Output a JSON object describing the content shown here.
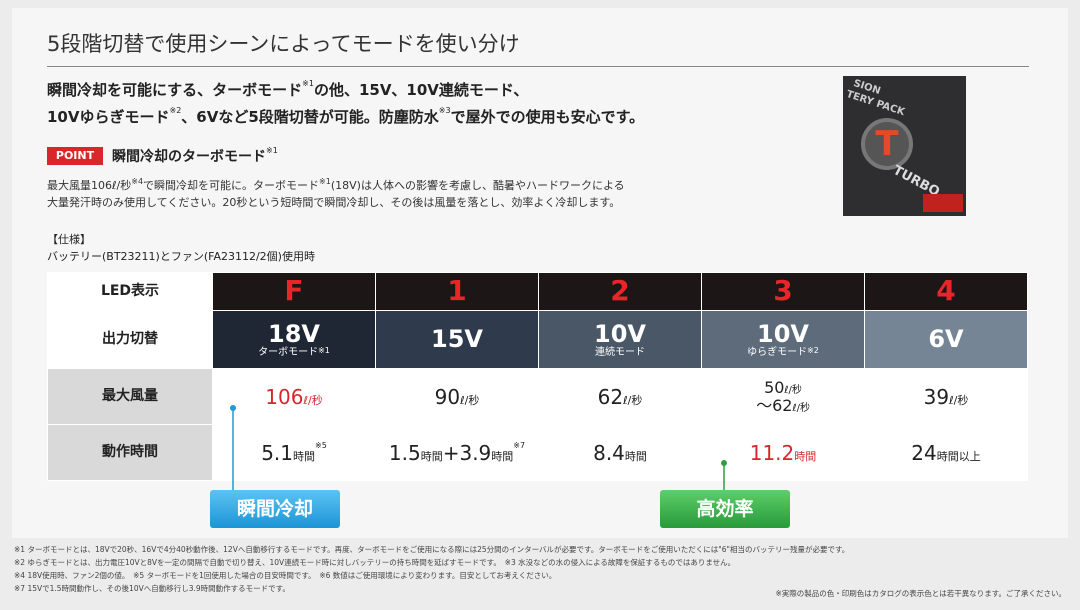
{
  "header": {
    "title": "5段階切替で使用シーンによってモードを使い分け"
  },
  "intro": {
    "lines": [
      [
        "瞬間冷却を可能にする、ターボモード",
        "※1",
        "の他、15V、10V連続モード、"
      ],
      [
        "10Vゆらぎモード",
        "※2",
        "、6Vなど5段階切替が可能。防塵防水",
        "※3",
        "で屋外での使用も安心です。"
      ]
    ]
  },
  "photo": {
    "texts": [
      "SION",
      "TERY PACK",
      "T",
      "TURBO"
    ]
  },
  "point": {
    "badge": "POINT",
    "title": [
      "瞬間冷却のターボモード",
      "※1"
    ],
    "body": [
      [
        "最大風量106ℓ/秒",
        "※4",
        "で瞬間冷却を可能に。ターボモード",
        "※1",
        "(18V)は人体への影響を考慮し、酷暑やハードワークによる"
      ],
      [
        "大量発汗時のみ使用してください。20秒という短時間で瞬間冷却し、その後は風量を落とし、効率よく冷却します。"
      ]
    ]
  },
  "spec": {
    "heading": "【仕様】",
    "condition": "バッテリー(BT23211)とファン(FA23112/2個)使用時"
  },
  "table": {
    "rows": [
      {
        "label": "LED表示",
        "cells": [
          {
            "lines": [
              [
                "F"
              ]
            ]
          },
          {
            "lines": [
              [
                "1"
              ]
            ]
          },
          {
            "lines": [
              [
                "2"
              ]
            ]
          },
          {
            "lines": [
              [
                "3"
              ]
            ]
          },
          {
            "lines": [
              [
                "4"
              ]
            ]
          }
        ]
      },
      {
        "label": "出力切替",
        "cells": [
          {
            "lines": [
              [
                "18V"
              ]
            ],
            "sub": "ターボモード",
            "note": "※1"
          },
          {
            "lines": [
              [
                "15V"
              ]
            ]
          },
          {
            "lines": [
              [
                "10V"
              ]
            ],
            "sub": "連続モード"
          },
          {
            "lines": [
              [
                "10V"
              ]
            ],
            "sub": "ゆらぎモード",
            "note": "※2"
          },
          {
            "lines": [
              [
                "6V"
              ]
            ]
          }
        ]
      },
      {
        "label": "最大風量",
        "cells": [
          {
            "lines": [
              [
                "106",
                "ℓ/秒"
              ]
            ],
            "color": "#d8262c"
          },
          {
            "lines": [
              [
                "90",
                "ℓ/秒"
              ]
            ]
          },
          {
            "lines": [
              [
                "62",
                "ℓ/秒"
              ]
            ]
          },
          {
            "lines": [
              [
                "50",
                "ℓ/秒"
              ],
              [
                "〜62",
                "ℓ/秒"
              ]
            ]
          },
          {
            "lines": [
              [
                "39",
                "ℓ/秒"
              ]
            ]
          }
        ]
      },
      {
        "label": "動作時間",
        "cells": [
          {
            "lines": [
              [
                "5.1",
                "時間"
              ]
            ],
            "note": "※5"
          },
          {
            "lines": [
              [
                "1.5",
                "時間",
                "+3.9",
                "時間"
              ]
            ],
            "note": "※7"
          },
          {
            "lines": [
              [
                "8.4",
                "時間"
              ]
            ]
          },
          {
            "lines": [
              [
                "11.2",
                "時間"
              ]
            ],
            "color": "#d8262c"
          },
          {
            "lines": [
              [
                "24",
                "時間以上"
              ]
            ]
          }
        ]
      }
    ]
  },
  "badges": [
    "瞬間冷却",
    "高効率"
  ],
  "footnotes": [
    "※1 ターボモードとは、18Vで20秒、16Vで4分40秒動作後、12Vへ自動移行するモードです。再度、ターボモードをご使用になる際には25分間のインターバルが必要です。ターボモードをご使用いただくには\"6\"相当のバッテリー残量が必要です。",
    "※2 ゆらぎモードとは、出力電圧10Vと8Vを一定の間隔で自動で切り替え、10V連続モード時に対しバッテリーの持ち時間を延ばすモードです。　※3 水没などの水の侵入による故障を保証するものではありません。",
    "※4 18V使用時、ファン2個の値。　※5 ターボモードを1回使用した場合の目安時間です。　※6 数値はご使用環境により変わります。目安としてお考えください。",
    "※7 15Vで1.5時間動作し、その後10Vへ自動移行し3.9時間動作するモードです。"
  ],
  "disclaimer": "※実際の製品の色・印刷色はカタログの表示色とは若干異なります。ご了承ください。"
}
